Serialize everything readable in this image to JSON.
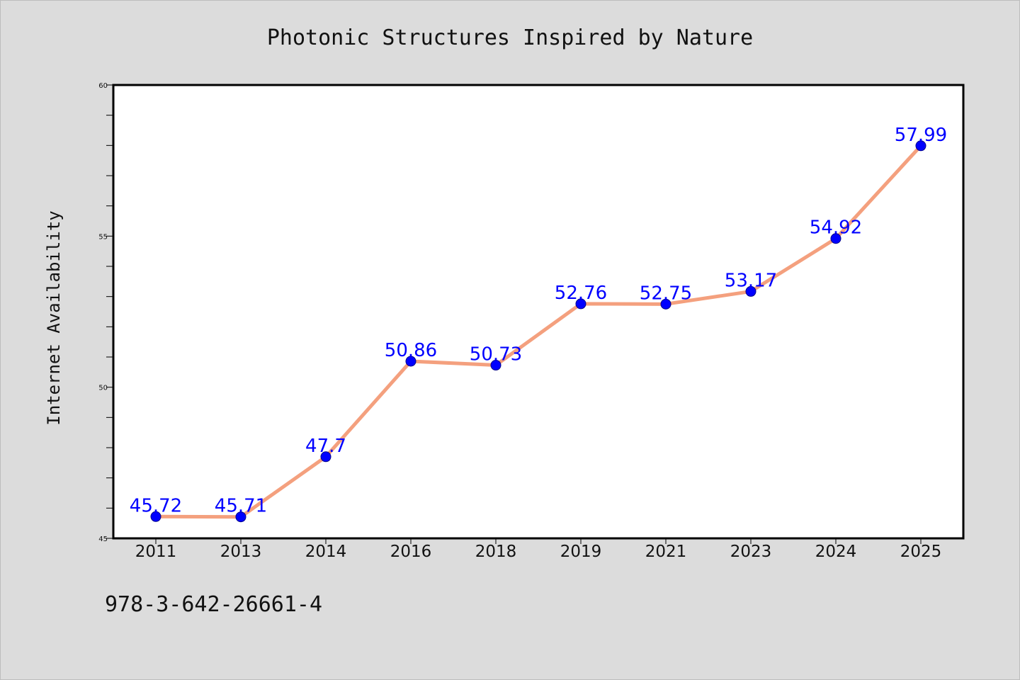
{
  "chart_data": {
    "type": "line",
    "title": "Photonic Structures Inspired by Nature",
    "xlabel": "",
    "ylabel": "Internet Availability",
    "categories": [
      "2011",
      "2013",
      "2014",
      "2016",
      "2018",
      "2019",
      "2021",
      "2023",
      "2024",
      "2025"
    ],
    "series": [
      {
        "values": [
          45.72,
          45.71,
          47.7,
          50.86,
          50.73,
          52.76,
          52.75,
          53.17,
          54.92,
          57.99
        ],
        "data_labels": [
          "45.72",
          "45.71",
          "47.7",
          "50.86",
          "50.73",
          "52.76",
          "52.75",
          "53.17",
          "54.92",
          "57.99"
        ],
        "line_color": "#f4a07e",
        "marker_color": "#0000ff",
        "label_color": "#0000ff"
      }
    ],
    "ylim": [
      45,
      60
    ],
    "y_ticks": [
      "45",
      "50",
      "55",
      "60"
    ],
    "grid": false,
    "legend": "none"
  },
  "footer": {
    "isbn": "978-3-642-26661-4"
  },
  "colors": {
    "page_background": "#dcdcdc",
    "plot_background": "#ffffff",
    "axis_frame": "#000000"
  }
}
